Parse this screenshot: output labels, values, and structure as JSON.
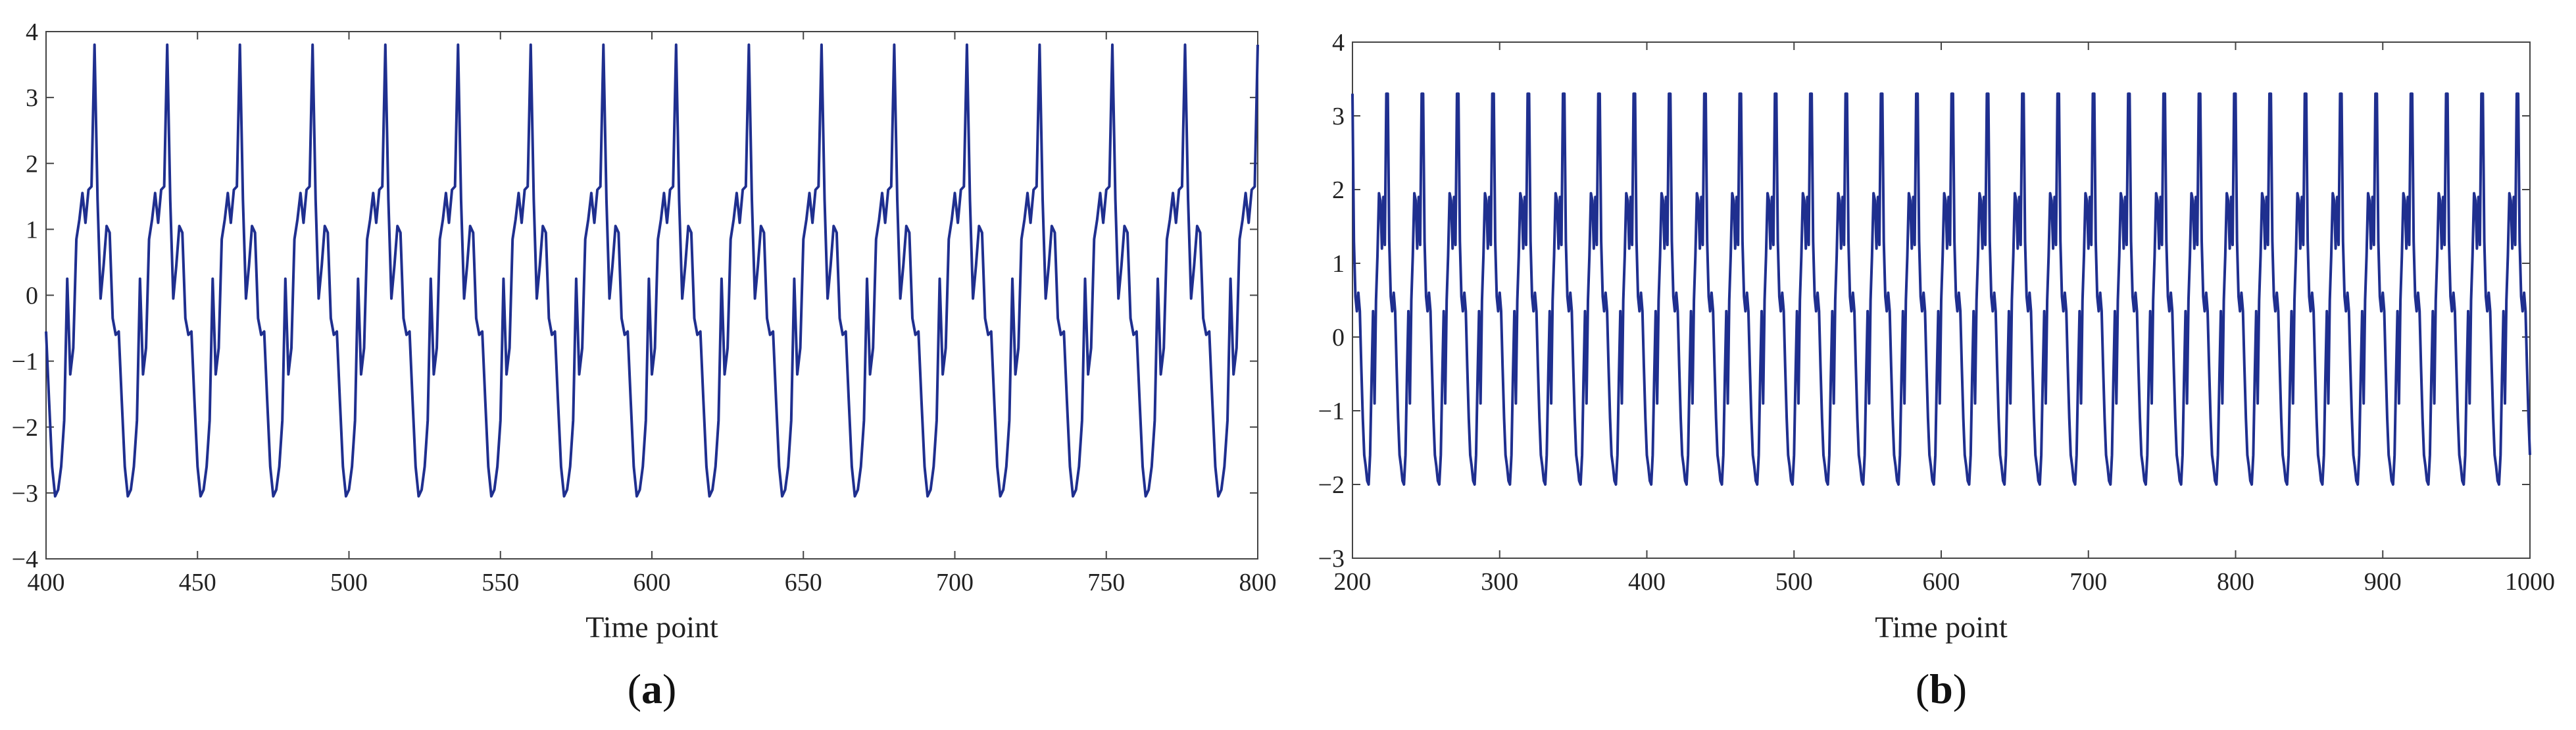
{
  "chart_data": [
    {
      "type": "line",
      "panel_label": "a",
      "xlabel": "Time point",
      "ylabel": "",
      "xlim": [
        400,
        800
      ],
      "ylim": [
        -4,
        4
      ],
      "xticks": [
        400,
        450,
        500,
        550,
        600,
        650,
        700,
        750,
        800
      ],
      "yticks": [
        -4,
        -3,
        -2,
        -1,
        0,
        1,
        2,
        3,
        4
      ],
      "grid": false,
      "color": "#1f2f8f",
      "period": 24,
      "cycle_start": 400,
      "cycle_values": [
        -0.55,
        -1.6,
        -2.6,
        -3.05,
        -2.95,
        -2.6,
        -1.9,
        0.25,
        -1.2,
        -0.8,
        0.85,
        1.15,
        1.55,
        1.1,
        1.6,
        1.65,
        3.8,
        1.45,
        -0.05,
        0.45,
        1.05,
        0.95,
        -0.35,
        -0.6
      ],
      "x_end": 800
    },
    {
      "type": "line",
      "panel_label": "b",
      "xlabel": "Time point",
      "ylabel": "",
      "xlim": [
        200,
        1000
      ],
      "ylim": [
        -3,
        4
      ],
      "xticks": [
        200,
        300,
        400,
        500,
        600,
        700,
        800,
        900,
        1000
      ],
      "yticks": [
        -3,
        -2,
        -1,
        0,
        1,
        2,
        3,
        4
      ],
      "grid": false,
      "color": "#1f2f8f",
      "period": 24,
      "cycle_start": 200,
      "cycle_values": [
        3.3,
        1.3,
        0.55,
        0.35,
        0.6,
        0.35,
        -0.4,
        -1.1,
        -1.6,
        -1.75,
        -1.95,
        -2.0,
        -1.6,
        -0.55,
        0.35,
        -0.9,
        0.5,
        1.1,
        1.95,
        1.85,
        1.2,
        1.9,
        1.25,
        3.3
      ],
      "x_end": 1000
    }
  ]
}
